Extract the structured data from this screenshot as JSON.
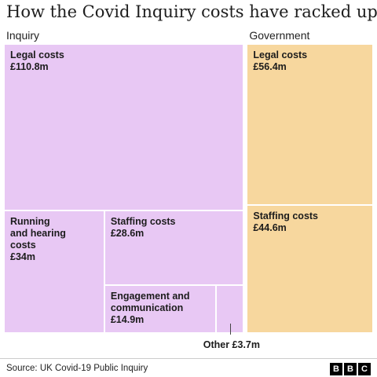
{
  "title": "How the Covid Inquiry costs have racked up",
  "source": "Source: UK Covid-19 Public Inquiry",
  "logo": [
    "B",
    "B",
    "C"
  ],
  "colors": {
    "inquiry": "#e8c8f4",
    "government": "#f7d79e"
  },
  "chart_data": {
    "type": "treemap",
    "unit": "£m",
    "groups": [
      {
        "name": "Inquiry",
        "items": [
          {
            "key": "legal",
            "label": "Legal costs",
            "display": "£110.8m",
            "value": 110.8
          },
          {
            "key": "running",
            "label": "Running\nand hearing\ncosts",
            "display": "£34m",
            "value": 34
          },
          {
            "key": "staffing",
            "label": "Staffing costs",
            "display": "£28.6m",
            "value": 28.6
          },
          {
            "key": "engagement",
            "label": "Engagement and\ncommunication",
            "display": "£14.9m",
            "value": 14.9
          },
          {
            "key": "other",
            "label": "Other £3.7m",
            "display": "",
            "value": 3.7
          }
        ]
      },
      {
        "name": "Government",
        "items": [
          {
            "key": "legal",
            "label": "Legal costs",
            "display": "£56.4m",
            "value": 56.4
          },
          {
            "key": "staffing",
            "label": "Staffing costs",
            "display": "£44.6m",
            "value": 44.6
          }
        ]
      }
    ]
  }
}
